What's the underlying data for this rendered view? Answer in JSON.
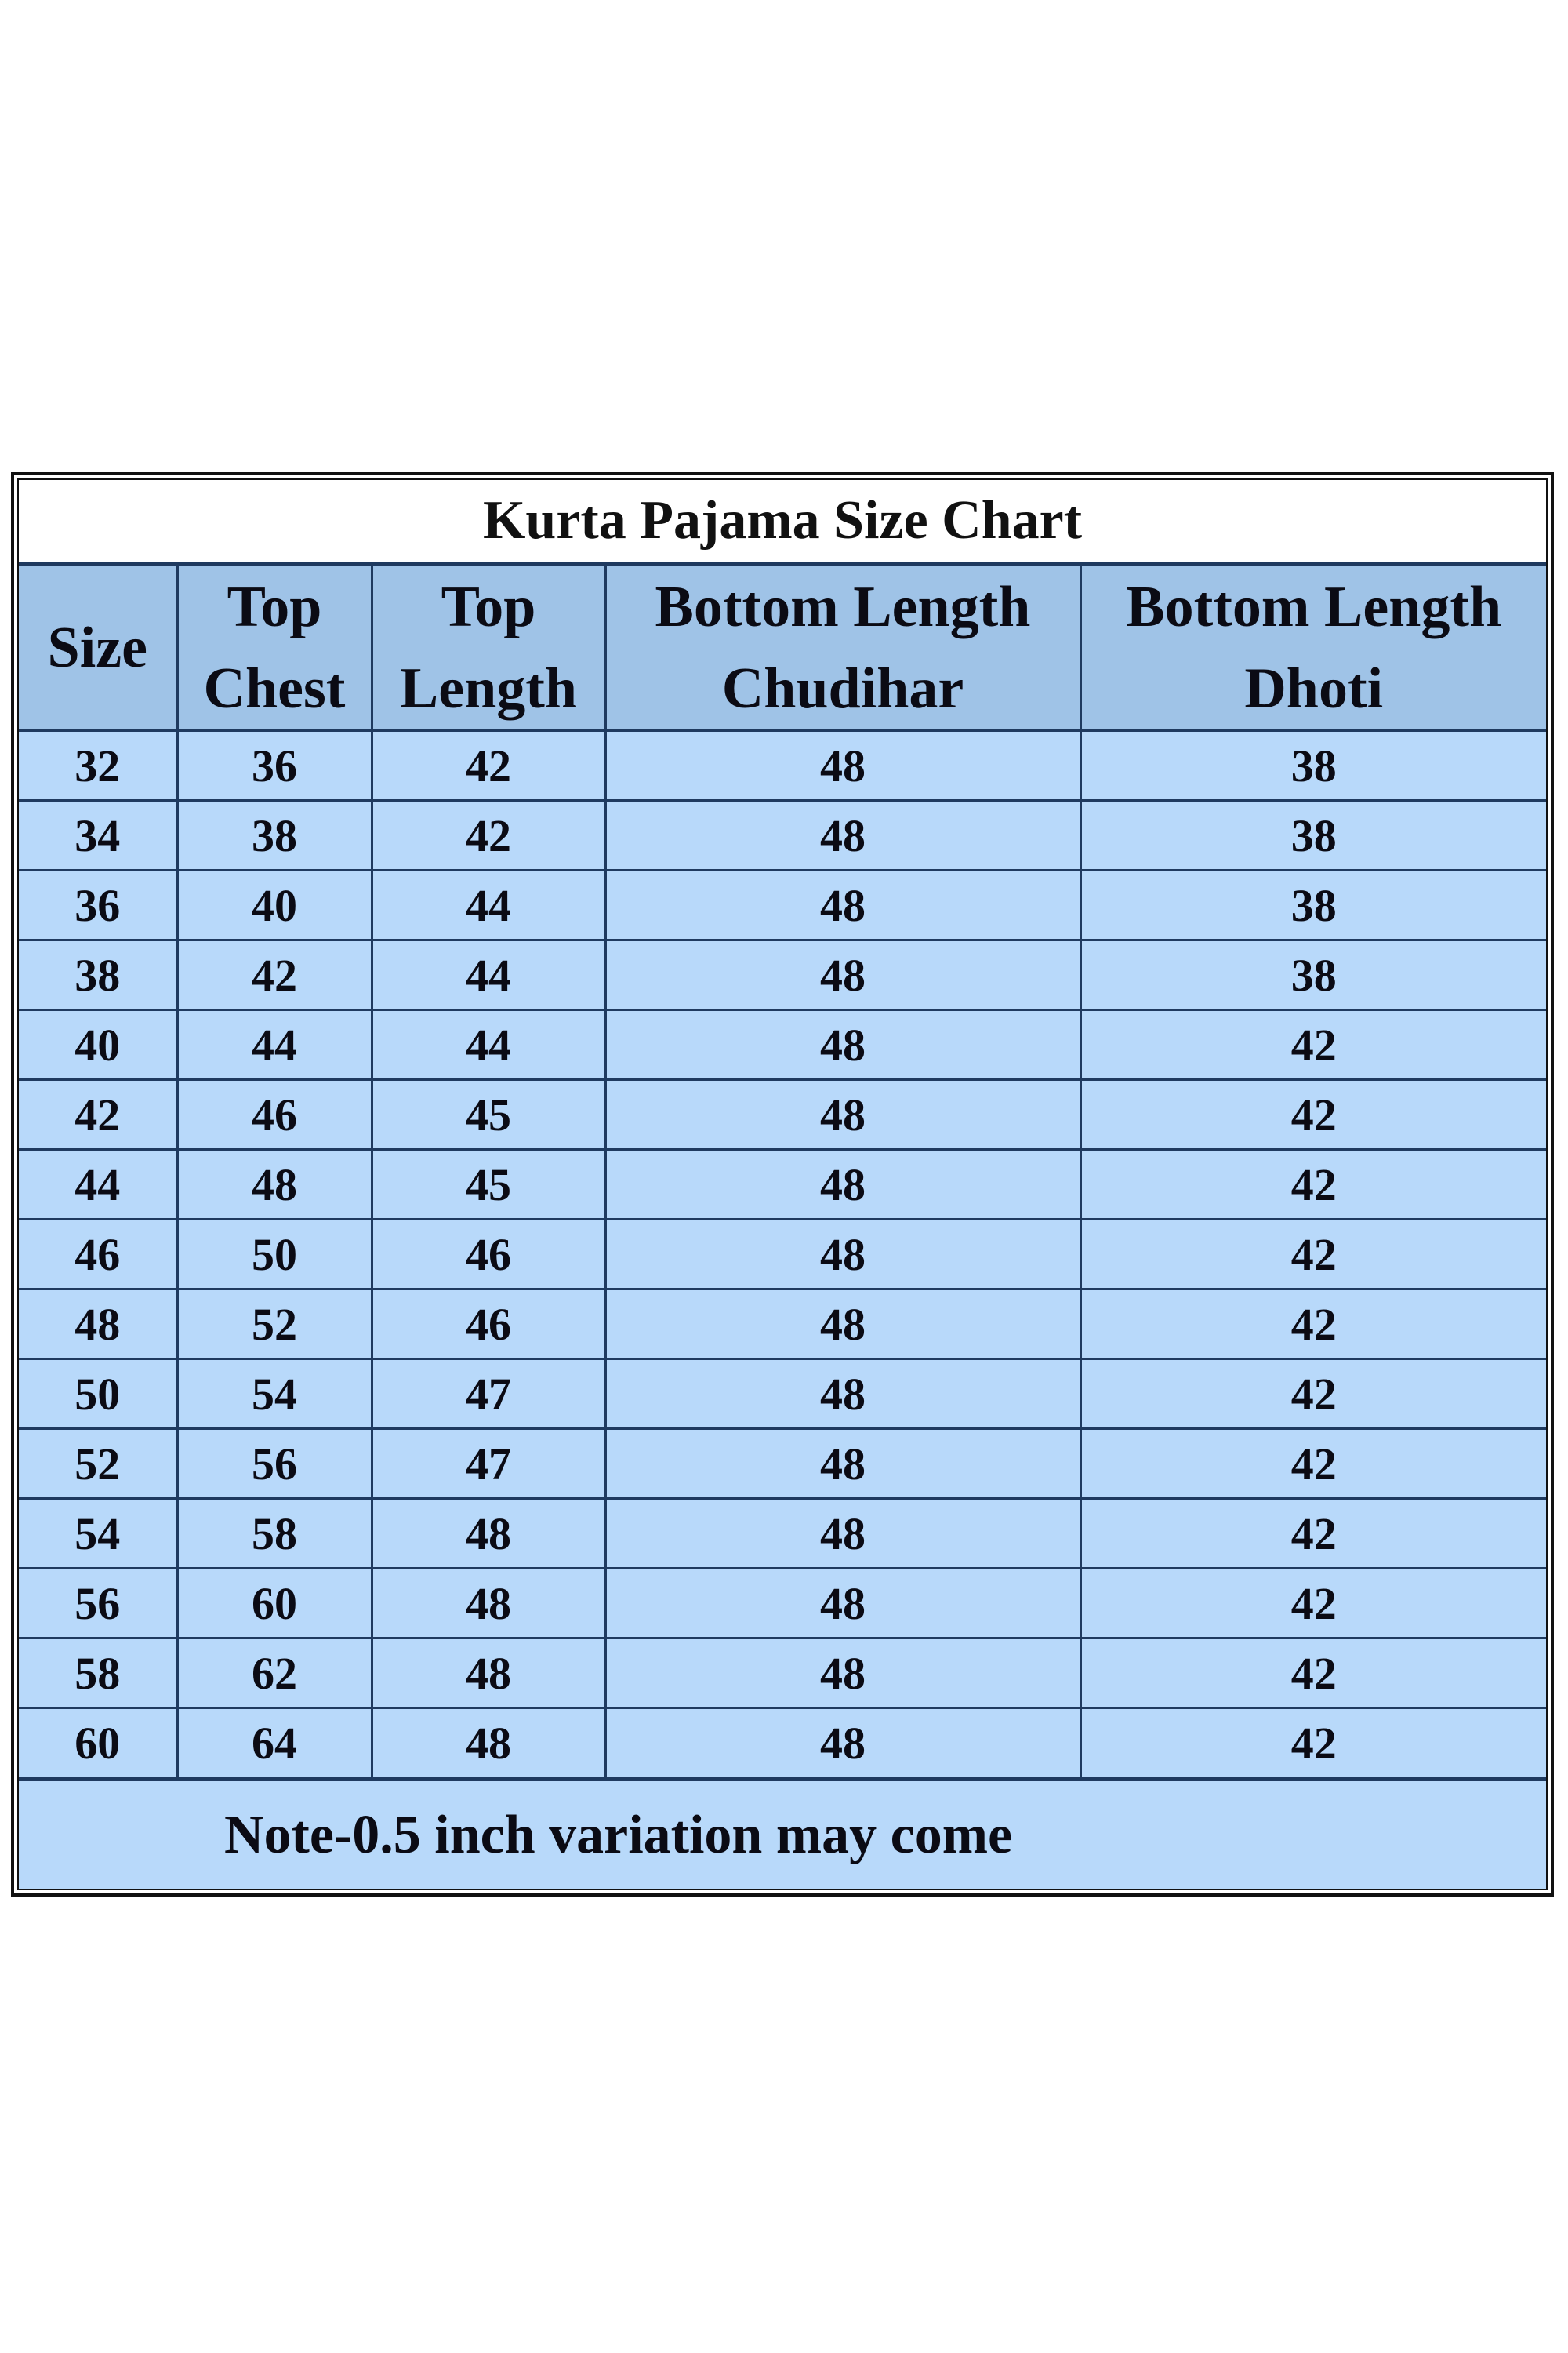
{
  "title": "Kurta Pajama Size Chart",
  "colors": {
    "header_bg": "#9fc3e7",
    "row_bg": "#b8d9fa",
    "border": "#1f3a5f"
  },
  "columns": [
    {
      "line1": "Size",
      "line2": ""
    },
    {
      "line1": "Top",
      "line2": "Chest"
    },
    {
      "line1": "Top",
      "line2": "Length"
    },
    {
      "line1": "Bottom Length",
      "line2": "Chudihar"
    },
    {
      "line1": "Bottom Length",
      "line2": "Dhoti"
    }
  ],
  "rows": [
    [
      "32",
      "36",
      "42",
      "48",
      "38"
    ],
    [
      "34",
      "38",
      "42",
      "48",
      "38"
    ],
    [
      "36",
      "40",
      "44",
      "48",
      "38"
    ],
    [
      "38",
      "42",
      "44",
      "48",
      "38"
    ],
    [
      "40",
      "44",
      "44",
      "48",
      "42"
    ],
    [
      "42",
      "46",
      "45",
      "48",
      "42"
    ],
    [
      "44",
      "48",
      "45",
      "48",
      "42"
    ],
    [
      "46",
      "50",
      "46",
      "48",
      "42"
    ],
    [
      "48",
      "52",
      "46",
      "48",
      "42"
    ],
    [
      "50",
      "54",
      "47",
      "48",
      "42"
    ],
    [
      "52",
      "56",
      "47",
      "48",
      "42"
    ],
    [
      "54",
      "58",
      "48",
      "48",
      "42"
    ],
    [
      "56",
      "60",
      "48",
      "48",
      "42"
    ],
    [
      "58",
      "62",
      "48",
      "48",
      "42"
    ],
    [
      "60",
      "64",
      "48",
      "48",
      "42"
    ]
  ],
  "note": "Note-0.5 inch variation may come"
}
